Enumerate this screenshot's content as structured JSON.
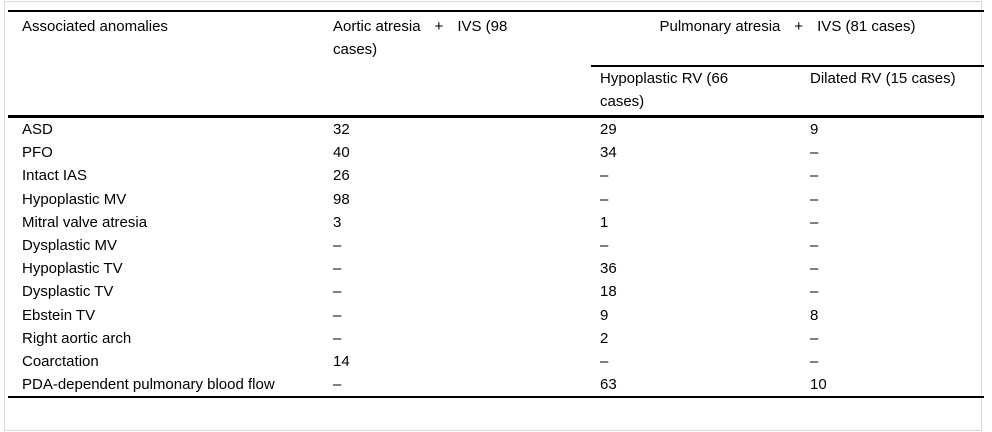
{
  "page": {
    "background": "#ffffff",
    "text_color": "#000000",
    "rule_color": "#000000",
    "frame_color": "#d9d9d9"
  },
  "table": {
    "header": {
      "col1": "Associated anomalies",
      "col2": {
        "left": "Aortic atresia",
        "plus": "+",
        "right": "IVS (98",
        "line2": "cases)"
      },
      "group": {
        "left": "Pulmonary atresia",
        "plus": "+",
        "right": "IVS (81 cases)"
      },
      "col3": "Hypoplastic RV (66 cases)",
      "col4": "Dilated RV (15 cases)"
    },
    "rows": [
      {
        "label": "ASD",
        "values": [
          "32",
          "29",
          "9"
        ]
      },
      {
        "label": "PFO",
        "values": [
          "40",
          "34",
          "–"
        ]
      },
      {
        "label": "Intact IAS",
        "values": [
          "26",
          "–",
          "–"
        ]
      },
      {
        "label": "Hypoplastic MV",
        "values": [
          "98",
          "–",
          "–"
        ]
      },
      {
        "label": "Mitral valve atresia",
        "values": [
          "3",
          "1",
          "–"
        ]
      },
      {
        "label": "Dysplastic MV",
        "values": [
          "–",
          "–",
          "–"
        ]
      },
      {
        "label": "Hypoplastic TV",
        "values": [
          "–",
          "36",
          "–"
        ]
      },
      {
        "label": "Dysplastic TV",
        "values": [
          "–",
          "18",
          "–"
        ]
      },
      {
        "label": "Ebstein TV",
        "values": [
          "–",
          "9",
          "8"
        ]
      },
      {
        "label": "Right aortic arch",
        "values": [
          "–",
          "2",
          "–"
        ]
      },
      {
        "label": "Coarctation",
        "values": [
          "14",
          "–",
          "–"
        ]
      },
      {
        "label": "PDA-dependent pulmonary blood flow",
        "values": [
          "–",
          "63",
          "10"
        ]
      }
    ]
  }
}
